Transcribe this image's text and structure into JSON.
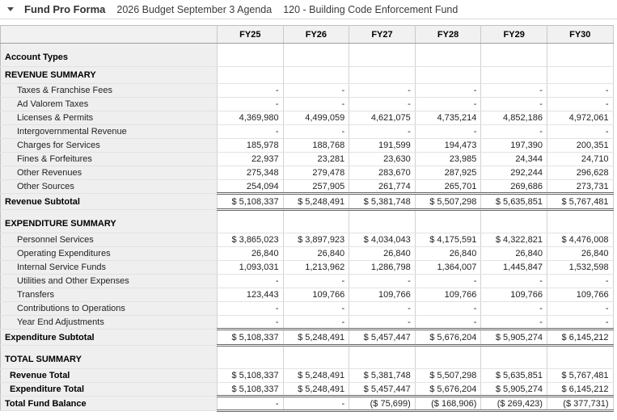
{
  "toolbar": {
    "collapse_icon": "caret-down",
    "title": "Fund Pro Forma",
    "subtitle1": "2026 Budget September 3 Agenda",
    "subtitle2": "120 - Building Code Enforcement Fund"
  },
  "table": {
    "columns": [
      "FY25",
      "FY26",
      "FY27",
      "FY28",
      "FY29",
      "FY30"
    ],
    "rows": [
      {
        "type": "section-tall",
        "label": "Account Types",
        "values": [
          "",
          "",
          "",
          "",
          "",
          ""
        ]
      },
      {
        "type": "section",
        "label": "REVENUE SUMMARY",
        "values": [
          "",
          "",
          "",
          "",
          "",
          ""
        ]
      },
      {
        "type": "detail",
        "label": "Taxes & Franchise Fees",
        "values": [
          "-",
          "-",
          "-",
          "-",
          "-",
          "-"
        ]
      },
      {
        "type": "detail",
        "label": "Ad Valorem Taxes",
        "values": [
          "-",
          "-",
          "-",
          "-",
          "-",
          "-"
        ]
      },
      {
        "type": "detail",
        "label": "Licenses & Permits",
        "values": [
          "4,369,980",
          "4,499,059",
          "4,621,075",
          "4,735,214",
          "4,852,186",
          "4,972,061"
        ]
      },
      {
        "type": "detail",
        "label": "Intergovernmental Revenue",
        "values": [
          "-",
          "-",
          "-",
          "-",
          "-",
          "-"
        ]
      },
      {
        "type": "detail",
        "label": "Charges for Services",
        "values": [
          "185,978",
          "188,768",
          "191,599",
          "194,473",
          "197,390",
          "200,351"
        ]
      },
      {
        "type": "detail",
        "label": "Fines & Forfeitures",
        "values": [
          "22,937",
          "23,281",
          "23,630",
          "23,985",
          "24,344",
          "24,710"
        ]
      },
      {
        "type": "detail",
        "label": "Other Revenues",
        "values": [
          "275,348",
          "279,478",
          "283,670",
          "287,925",
          "292,244",
          "296,628"
        ]
      },
      {
        "type": "detail",
        "label": "Other Sources",
        "values": [
          "254,094",
          "257,905",
          "261,774",
          "265,701",
          "269,686",
          "273,731"
        ]
      },
      {
        "type": "subtotal",
        "label": "Revenue Subtotal",
        "values": [
          "$ 5,108,337",
          "$ 5,248,491",
          "$ 5,381,748",
          "$ 5,507,298",
          "$ 5,635,851",
          "$ 5,767,481"
        ]
      },
      {
        "type": "section-tall",
        "label": "EXPENDITURE SUMMARY",
        "values": [
          "",
          "",
          "",
          "",
          "",
          ""
        ]
      },
      {
        "type": "detail",
        "label": "Personnel Services",
        "values": [
          "$ 3,865,023",
          "$ 3,897,923",
          "$ 4,034,043",
          "$ 4,175,591",
          "$ 4,322,821",
          "$ 4,476,008"
        ]
      },
      {
        "type": "detail",
        "label": "Operating Expenditures",
        "values": [
          "26,840",
          "26,840",
          "26,840",
          "26,840",
          "26,840",
          "26,840"
        ]
      },
      {
        "type": "detail",
        "label": "Internal Service Funds",
        "values": [
          "1,093,031",
          "1,213,962",
          "1,286,798",
          "1,364,007",
          "1,445,847",
          "1,532,598"
        ]
      },
      {
        "type": "detail",
        "label": "Utilities and Other Expenses",
        "values": [
          "-",
          "-",
          "-",
          "-",
          "-",
          "-"
        ]
      },
      {
        "type": "detail",
        "label": "Transfers",
        "values": [
          "123,443",
          "109,766",
          "109,766",
          "109,766",
          "109,766",
          "109,766"
        ]
      },
      {
        "type": "detail",
        "label": "Contributions to Operations",
        "values": [
          "-",
          "-",
          "-",
          "-",
          "-",
          "-"
        ]
      },
      {
        "type": "detail",
        "label": "Year End Adjustments",
        "values": [
          "-",
          "-",
          "-",
          "-",
          "-",
          "-"
        ]
      },
      {
        "type": "subtotal",
        "label": "Expenditure Subtotal",
        "values": [
          "$ 5,108,337",
          "$ 5,248,491",
          "$ 5,457,447",
          "$ 5,676,204",
          "$ 5,905,274",
          "$ 6,145,212"
        ]
      },
      {
        "type": "section-tall",
        "label": "TOTAL SUMMARY",
        "values": [
          "",
          "",
          "",
          "",
          "",
          ""
        ]
      },
      {
        "type": "total",
        "label": "Revenue Total",
        "values": [
          "$ 5,108,337",
          "$ 5,248,491",
          "$ 5,381,748",
          "$ 5,507,298",
          "$ 5,635,851",
          "$ 5,767,481"
        ]
      },
      {
        "type": "total",
        "label": "Expenditure Total",
        "values": [
          "$ 5,108,337",
          "$ 5,248,491",
          "$ 5,457,447",
          "$ 5,676,204",
          "$ 5,905,274",
          "$ 6,145,212"
        ]
      },
      {
        "type": "grandtotal",
        "label": "Total Fund Balance",
        "values": [
          "-",
          "-",
          "($ 75,699)",
          "($ 168,906)",
          "($ 269,423)",
          "($ 377,731)"
        ]
      }
    ]
  },
  "colors": {
    "label_bg": "#efefef",
    "header_bg": "#f1f1f1",
    "strong_border": "#666666",
    "divider": "#d9d9d9"
  }
}
